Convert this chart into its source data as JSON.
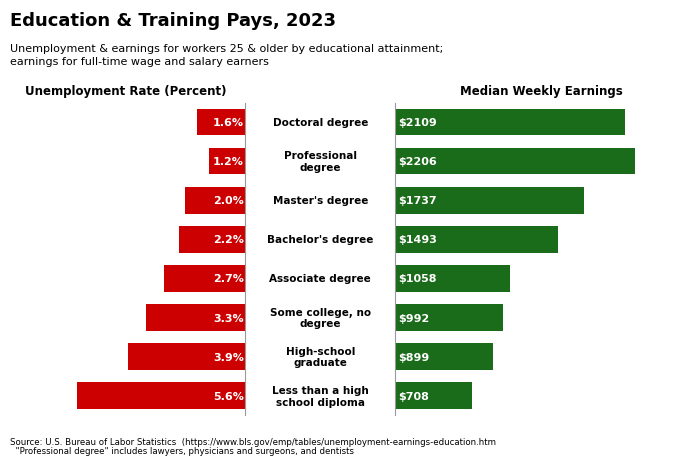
{
  "title": "Education & Training Pays, 2023",
  "subtitle": "Unemployment & earnings for workers 25 & older by educational attainment;\nearnings for full-time wage and salary earners",
  "left_axis_label": "Unemployment Rate (Percent)",
  "right_axis_label": "Median Weekly Earnings",
  "categories": [
    "Doctoral degree",
    "Professional\ndegree",
    "Master's degree",
    "Bachelor's degree",
    "Associate degree",
    "Some college, no\ndegree",
    "High-school\ngraduate",
    "Less than a high\nschool diploma"
  ],
  "unemployment": [
    1.6,
    1.2,
    2.0,
    2.2,
    2.7,
    3.3,
    3.9,
    5.6
  ],
  "earnings": [
    2109,
    2206,
    1737,
    1493,
    1058,
    992,
    899,
    708
  ],
  "unemp_labels": [
    "1.6%",
    "1.2%",
    "2.0%",
    "2.2%",
    "2.7%",
    "3.3%",
    "3.9%",
    "5.6%"
  ],
  "earn_labels": [
    "$2109",
    "$2206",
    "$1737",
    "$1493",
    "$1058",
    "$992",
    "$899",
    "$708"
  ],
  "red_color": "#CC0000",
  "green_color": "#1A6B1A",
  "footnote1": "Source: U.S. Bureau of Labor Statistics  (https://www.bls.gov/emp/tables/unemployment-earnings-education.htm",
  "footnote2": "  \"Professional degree\" includes lawyers, physicians and surgeons, and dentists",
  "fig_width": 6.95,
  "fig_height": 4.6,
  "bar_height": 0.68
}
